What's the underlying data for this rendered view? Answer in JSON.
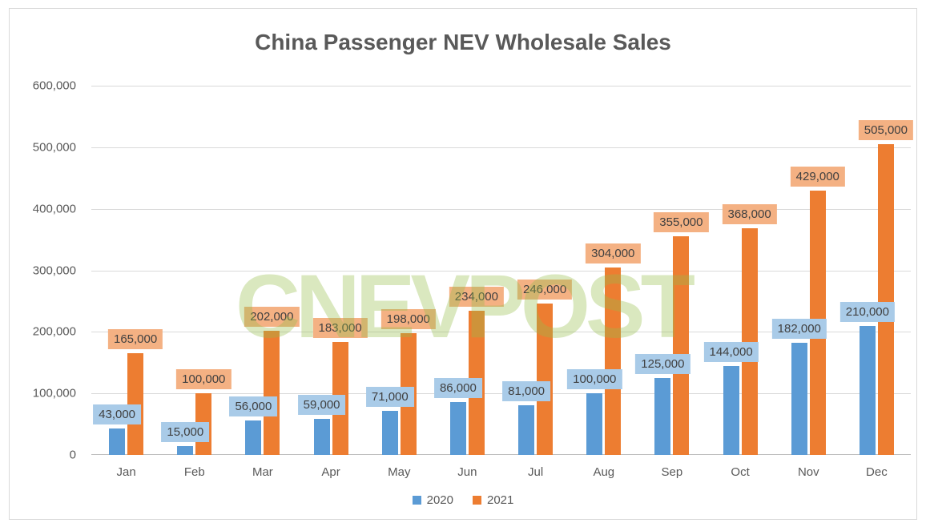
{
  "chart_data": {
    "type": "bar",
    "title": "China Passenger NEV Wholesale Sales",
    "categories": [
      "Jan",
      "Feb",
      "Mar",
      "Apr",
      "May",
      "Jun",
      "Jul",
      "Aug",
      "Sep",
      "Oct",
      "Nov",
      "Dec"
    ],
    "series": [
      {
        "name": "2020",
        "color": "#5B9BD5",
        "label_bg": "#A9CBE8",
        "values": [
          43000,
          15000,
          56000,
          59000,
          71000,
          86000,
          81000,
          100000,
          125000,
          144000,
          182000,
          210000
        ],
        "labels": [
          "43,000",
          "15,000",
          "56,000",
          "59,000",
          "71,000",
          "86,000",
          "81,000",
          "100,000",
          "125,000",
          "144,000",
          "182,000",
          "210,000"
        ]
      },
      {
        "name": "2021",
        "color": "#ED7D31",
        "label_bg": "#F4B183",
        "values": [
          165000,
          100000,
          202000,
          183000,
          198000,
          234000,
          246000,
          304000,
          355000,
          368000,
          429000,
          505000
        ],
        "labels": [
          "165,000",
          "100,000",
          "202,000",
          "183,000",
          "198,000",
          "234,000",
          "246,000",
          "304,000",
          "355,000",
          "368,000",
          "429,000",
          "505,000"
        ]
      }
    ],
    "ylim": [
      0,
      600000
    ],
    "ytick_step": 100000,
    "ytick_labels": [
      "0",
      "100,000",
      "200,000",
      "300,000",
      "400,000",
      "500,000",
      "600,000"
    ],
    "grid": true,
    "data_labels": true,
    "legend_position": "bottom"
  },
  "watermark": {
    "text": "CNEVPOST",
    "color": "#96BE4B"
  }
}
